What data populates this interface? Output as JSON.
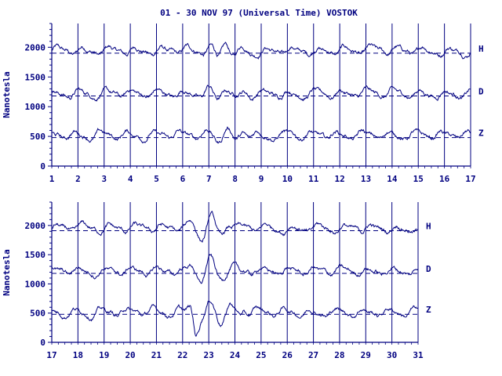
{
  "title": "01 - 30 NOV 97 (Universal Time) VOSTOK",
  "colors": {
    "ink": "#000080",
    "background": "#ffffff"
  },
  "chart_data": [
    {
      "type": "line",
      "panel": "top",
      "xlim": [
        1,
        17
      ],
      "x_ticks": [
        "1",
        "2",
        "3",
        "4",
        "5",
        "6",
        "7",
        "8",
        "9",
        "10",
        "11",
        "12",
        "13",
        "14",
        "15",
        "16",
        "17"
      ],
      "ylim": [
        0,
        2400
      ],
      "y_ticks": [
        "0",
        "500",
        "1000",
        "1500",
        "2000"
      ],
      "ylabel": "Nanotesla",
      "grid": "vertical lines at each day",
      "series": [
        {
          "name": "H",
          "baseline": 1900
        },
        {
          "name": "D",
          "baseline": 1180
        },
        {
          "name": "Z",
          "baseline": 480
        }
      ]
    },
    {
      "type": "line",
      "panel": "bottom",
      "xlim": [
        17,
        31
      ],
      "x_ticks": [
        "17",
        "18",
        "19",
        "20",
        "21",
        "22",
        "23",
        "24",
        "25",
        "26",
        "27",
        "28",
        "29",
        "30",
        "31"
      ],
      "ylim": [
        0,
        2400
      ],
      "y_ticks": [
        "0",
        "500",
        "1000",
        "1500",
        "2000"
      ],
      "ylabel": "Nanotesla",
      "grid": "vertical lines at each day",
      "series": [
        {
          "name": "H",
          "baseline": 1910
        },
        {
          "name": "D",
          "baseline": 1180
        },
        {
          "name": "Z",
          "baseline": 480
        }
      ]
    }
  ]
}
